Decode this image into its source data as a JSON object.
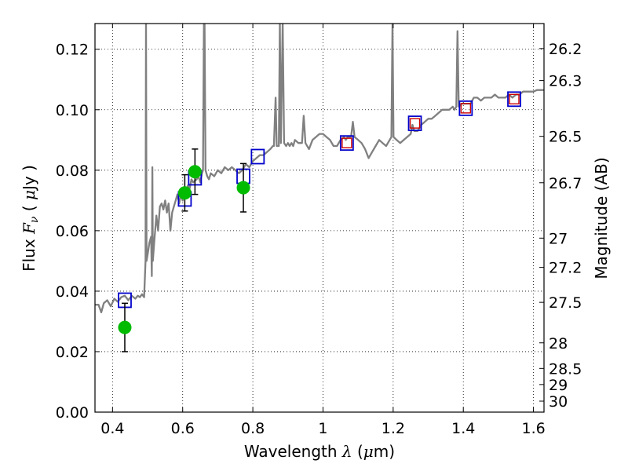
{
  "chart_data": {
    "type": "line",
    "title": "",
    "xlabel": "Wavelength",
    "xlabel_math": "λ",
    "xlabel_unit_open": " (",
    "xlabel_unit_math": "μ",
    "xlabel_unit_close": "m)",
    "ylabel": "Flux",
    "ylabel_math": "F",
    "ylabel_math_sub": "ν",
    "ylabel_unit_open": "( ",
    "ylabel_unit_math": "μ",
    "ylabel_unit_close": "Jy )",
    "y2label": "Magnitude (AB)",
    "xlim": [
      0.35,
      1.63
    ],
    "ylim": [
      0.0,
      0.1285
    ],
    "grid": true,
    "legend": "none",
    "x_ticks": [
      0.4,
      0.6,
      0.8,
      1.0,
      1.2,
      1.4,
      1.6
    ],
    "x_tick_labels": [
      "0.4",
      "0.6",
      "0.8",
      "1",
      "1.2",
      "1.4",
      "1.6"
    ],
    "y_ticks": [
      0.0,
      0.02,
      0.04,
      0.06,
      0.08,
      0.1,
      0.12
    ],
    "y_tick_labels": [
      "0.00",
      "0.02",
      "0.04",
      "0.06",
      "0.08",
      "0.10",
      "0.12"
    ],
    "y2_ticks": [
      {
        "mag": 26.2,
        "label": "26.2"
      },
      {
        "mag": 26.3,
        "label": "26.3"
      },
      {
        "mag": 26.5,
        "label": "26.5"
      },
      {
        "mag": 26.7,
        "label": "26.7"
      },
      {
        "mag": 27.0,
        "label": "27"
      },
      {
        "mag": 27.2,
        "label": "27.2"
      },
      {
        "mag": 27.5,
        "label": "27.5"
      },
      {
        "mag": 28.0,
        "label": "28"
      },
      {
        "mag": 28.5,
        "label": "28.5"
      },
      {
        "mag": 29.0,
        "label": "29"
      },
      {
        "mag": 30.0,
        "label": "30"
      }
    ],
    "colors": {
      "template": "#808080",
      "observed": "#00bb00",
      "errorbar": "#000000",
      "model_box": "#0000cc",
      "model_marker": "#cc0000"
    },
    "template_spectrum": [
      [
        0.35,
        0.0355
      ],
      [
        0.36,
        0.0355
      ],
      [
        0.368,
        0.033
      ],
      [
        0.375,
        0.036
      ],
      [
        0.385,
        0.037
      ],
      [
        0.395,
        0.035
      ],
      [
        0.405,
        0.0375
      ],
      [
        0.415,
        0.0365
      ],
      [
        0.425,
        0.038
      ],
      [
        0.435,
        0.0385
      ],
      [
        0.445,
        0.037
      ],
      [
        0.455,
        0.0385
      ],
      [
        0.465,
        0.0375
      ],
      [
        0.472,
        0.0385
      ],
      [
        0.478,
        0.038
      ],
      [
        0.484,
        0.039
      ],
      [
        0.49,
        0.038
      ],
      [
        0.494,
        0.05
      ],
      [
        0.4955,
        0.129
      ],
      [
        0.497,
        0.05
      ],
      [
        0.5,
        0.052
      ],
      [
        0.505,
        0.056
      ],
      [
        0.51,
        0.058
      ],
      [
        0.512,
        0.045
      ],
      [
        0.5135,
        0.081
      ],
      [
        0.515,
        0.05
      ],
      [
        0.52,
        0.058
      ],
      [
        0.525,
        0.065
      ],
      [
        0.53,
        0.06
      ],
      [
        0.535,
        0.068
      ],
      [
        0.54,
        0.069
      ],
      [
        0.545,
        0.067
      ],
      [
        0.55,
        0.07
      ],
      [
        0.555,
        0.066
      ],
      [
        0.56,
        0.069
      ],
      [
        0.565,
        0.06
      ],
      [
        0.57,
        0.066
      ],
      [
        0.575,
        0.068
      ],
      [
        0.58,
        0.07
      ],
      [
        0.585,
        0.072
      ],
      [
        0.59,
        0.069
      ],
      [
        0.595,
        0.072
      ],
      [
        0.6,
        0.07
      ],
      [
        0.605,
        0.074
      ],
      [
        0.61,
        0.072
      ],
      [
        0.615,
        0.075
      ],
      [
        0.62,
        0.074
      ],
      [
        0.625,
        0.077
      ],
      [
        0.63,
        0.076
      ],
      [
        0.64,
        0.077
      ],
      [
        0.645,
        0.078
      ],
      [
        0.65,
        0.076
      ],
      [
        0.655,
        0.079
      ],
      [
        0.658,
        0.08
      ],
      [
        0.6605,
        0.129
      ],
      [
        0.6625,
        0.129
      ],
      [
        0.665,
        0.08
      ],
      [
        0.67,
        0.078
      ],
      [
        0.675,
        0.077
      ],
      [
        0.68,
        0.079
      ],
      [
        0.69,
        0.078
      ],
      [
        0.7,
        0.08
      ],
      [
        0.71,
        0.079
      ],
      [
        0.72,
        0.081
      ],
      [
        0.73,
        0.08
      ],
      [
        0.74,
        0.081
      ],
      [
        0.75,
        0.08
      ],
      [
        0.76,
        0.079
      ],
      [
        0.77,
        0.08
      ],
      [
        0.78,
        0.082
      ],
      [
        0.79,
        0.081
      ],
      [
        0.8,
        0.083
      ],
      [
        0.81,
        0.084
      ],
      [
        0.82,
        0.085
      ],
      [
        0.83,
        0.085
      ],
      [
        0.84,
        0.086
      ],
      [
        0.85,
        0.087
      ],
      [
        0.857,
        0.088
      ],
      [
        0.86,
        0.088
      ],
      [
        0.865,
        0.104
      ],
      [
        0.868,
        0.088
      ],
      [
        0.874,
        0.088
      ],
      [
        0.877,
        0.129
      ],
      [
        0.88,
        0.089
      ],
      [
        0.885,
        0.129
      ],
      [
        0.889,
        0.089
      ],
      [
        0.895,
        0.088
      ],
      [
        0.9,
        0.089
      ],
      [
        0.905,
        0.088
      ],
      [
        0.91,
        0.089
      ],
      [
        0.915,
        0.088
      ],
      [
        0.92,
        0.09
      ],
      [
        0.93,
        0.089
      ],
      [
        0.94,
        0.089
      ],
      [
        0.945,
        0.098
      ],
      [
        0.95,
        0.089
      ],
      [
        0.96,
        0.087
      ],
      [
        0.97,
        0.09
      ],
      [
        0.98,
        0.091
      ],
      [
        0.99,
        0.092
      ],
      [
        1.0,
        0.092
      ],
      [
        1.01,
        0.091
      ],
      [
        1.02,
        0.09
      ],
      [
        1.03,
        0.088
      ],
      [
        1.04,
        0.088
      ],
      [
        1.05,
        0.09
      ],
      [
        1.06,
        0.091
      ],
      [
        1.065,
        0.09
      ],
      [
        1.07,
        0.091
      ],
      [
        1.08,
        0.091
      ],
      [
        1.085,
        0.096
      ],
      [
        1.09,
        0.091
      ],
      [
        1.1,
        0.09
      ],
      [
        1.11,
        0.089
      ],
      [
        1.12,
        0.087
      ],
      [
        1.13,
        0.084
      ],
      [
        1.14,
        0.086
      ],
      [
        1.15,
        0.088
      ],
      [
        1.16,
        0.09
      ],
      [
        1.17,
        0.089
      ],
      [
        1.18,
        0.088
      ],
      [
        1.19,
        0.09
      ],
      [
        1.195,
        0.091
      ],
      [
        1.198,
        0.129
      ],
      [
        1.201,
        0.091
      ],
      [
        1.21,
        0.09
      ],
      [
        1.22,
        0.089
      ],
      [
        1.23,
        0.09
      ],
      [
        1.24,
        0.091
      ],
      [
        1.25,
        0.092
      ],
      [
        1.255,
        0.095
      ],
      [
        1.26,
        0.093
      ],
      [
        1.27,
        0.093
      ],
      [
        1.28,
        0.095
      ],
      [
        1.29,
        0.096
      ],
      [
        1.3,
        0.097
      ],
      [
        1.31,
        0.097
      ],
      [
        1.32,
        0.098
      ],
      [
        1.33,
        0.099
      ],
      [
        1.34,
        0.1
      ],
      [
        1.35,
        0.1
      ],
      [
        1.36,
        0.1
      ],
      [
        1.37,
        0.101
      ],
      [
        1.375,
        0.1
      ],
      [
        1.38,
        0.101
      ],
      [
        1.3835,
        0.126
      ],
      [
        1.387,
        0.101
      ],
      [
        1.395,
        0.102
      ],
      [
        1.41,
        0.102
      ],
      [
        1.42,
        0.102
      ],
      [
        1.43,
        0.104
      ],
      [
        1.44,
        0.104
      ],
      [
        1.45,
        0.103
      ],
      [
        1.46,
        0.104
      ],
      [
        1.47,
        0.104
      ],
      [
        1.48,
        0.104
      ],
      [
        1.49,
        0.105
      ],
      [
        1.5,
        0.104
      ],
      [
        1.51,
        0.104
      ],
      [
        1.52,
        0.104
      ],
      [
        1.53,
        0.105
      ],
      [
        1.54,
        0.104
      ],
      [
        1.55,
        0.105
      ],
      [
        1.56,
        0.105
      ],
      [
        1.57,
        0.106
      ],
      [
        1.58,
        0.106
      ],
      [
        1.59,
        0.106
      ],
      [
        1.6,
        0.106
      ],
      [
        1.61,
        0.1065
      ],
      [
        1.62,
        0.1065
      ],
      [
        1.63,
        0.1065
      ]
    ],
    "model_points": [
      {
        "x": 0.435,
        "y": 0.037,
        "marker": false
      },
      {
        "x": 0.606,
        "y": 0.0705,
        "marker": false
      },
      {
        "x": 0.635,
        "y": 0.0775,
        "marker": false
      },
      {
        "x": 0.773,
        "y": 0.078,
        "marker": false
      },
      {
        "x": 0.814,
        "y": 0.0845,
        "marker": false
      },
      {
        "x": 1.068,
        "y": 0.089,
        "marker": true
      },
      {
        "x": 1.262,
        "y": 0.0955,
        "marker": true
      },
      {
        "x": 1.407,
        "y": 0.1005,
        "marker": true
      },
      {
        "x": 1.545,
        "y": 0.1035,
        "marker": true
      }
    ],
    "observed_points": [
      {
        "x": 0.435,
        "y": 0.028,
        "err": 0.008
      },
      {
        "x": 0.606,
        "y": 0.0725,
        "err": 0.006
      },
      {
        "x": 0.635,
        "y": 0.0795,
        "err": 0.0075
      },
      {
        "x": 0.773,
        "y": 0.0742,
        "err": 0.008
      }
    ]
  }
}
